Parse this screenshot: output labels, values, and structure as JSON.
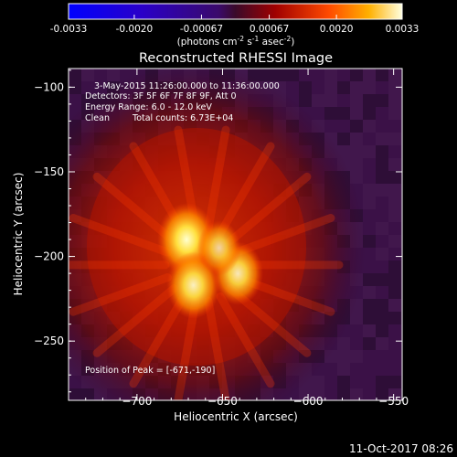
{
  "colorbar": {
    "ticks": [
      "-0.0033",
      "-0.0020",
      "-0.00067",
      "0.00067",
      "0.0020",
      "0.0033"
    ],
    "unit_prefix": "(photons cm",
    "unit_exp1": "-2",
    "unit_mid": " s",
    "unit_exp2": "-1",
    "unit_mid2": " asec",
    "unit_exp3": "-2",
    "unit_suffix": ")"
  },
  "annotations": {
    "time_range": "3-May-2015 11:26:00.000 to 11:36:00.000",
    "detectors": "Detectors: 3F 5F 6F 7F 8F 9F, Att 0",
    "energy_range": "Energy Range: 6.0 - 12.0 keV",
    "clean_label": "Clean",
    "total_counts": "Total counts: 6.73E+04",
    "peak": "Position of Peak = [-671,-190]"
  },
  "footer": {
    "timestamp": "11-Oct-2017 08:26"
  },
  "chart_data": {
    "type": "heatmap",
    "title": "Reconstructed RHESSI Image",
    "xlabel": "Heliocentric X (arcsec)",
    "ylabel": "Heliocentric Y (arcsec)",
    "xlim": [
      -740,
      -545
    ],
    "ylim": [
      -285,
      -89
    ],
    "x_ticks": [
      -700,
      -650,
      -600,
      -550
    ],
    "y_ticks": [
      -100,
      -150,
      -200,
      -250
    ],
    "x_tick_labels": [
      "−700",
      "−650",
      "−600",
      "−550"
    ],
    "y_tick_labels": [
      "−100",
      "−150",
      "−200",
      "−250"
    ],
    "colorbar_range": [
      -0.0033,
      0.0033
    ],
    "colormap": "rhessi_red_temperature",
    "sources": [
      {
        "x": -671,
        "y": -190,
        "value": 0.0033
      },
      {
        "x": -667,
        "y": -217,
        "value": 0.0028
      },
      {
        "x": -641,
        "y": -210,
        "value": 0.0025
      },
      {
        "x": -652,
        "y": -195,
        "value": 0.0018
      }
    ],
    "peak_position": [
      -671,
      -190
    ]
  }
}
